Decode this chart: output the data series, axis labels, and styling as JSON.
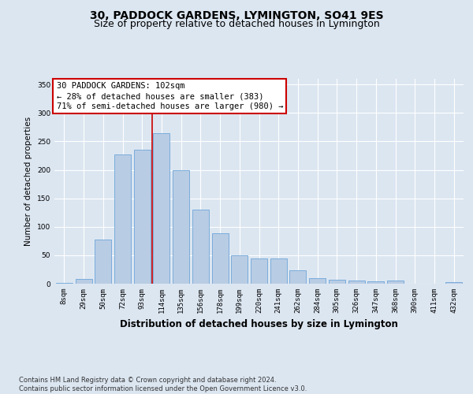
{
  "title": "30, PADDOCK GARDENS, LYMINGTON, SO41 9ES",
  "subtitle": "Size of property relative to detached houses in Lymington",
  "xlabel": "Distribution of detached houses by size in Lymington",
  "ylabel": "Number of detached properties",
  "categories": [
    "8sqm",
    "29sqm",
    "50sqm",
    "72sqm",
    "93sqm",
    "114sqm",
    "135sqm",
    "156sqm",
    "178sqm",
    "199sqm",
    "220sqm",
    "241sqm",
    "262sqm",
    "284sqm",
    "305sqm",
    "326sqm",
    "347sqm",
    "368sqm",
    "390sqm",
    "411sqm",
    "432sqm"
  ],
  "values": [
    2,
    8,
    77,
    227,
    235,
    265,
    200,
    130,
    88,
    50,
    45,
    44,
    24,
    10,
    7,
    6,
    4,
    6,
    0,
    0,
    3
  ],
  "bar_color": "#b8cce4",
  "bar_edge_color": "#5b9bd5",
  "background_color": "#dce6f1",
  "plot_bg_color": "#dce6f1",
  "grid_color": "#ffffff",
  "annotation_text": "30 PADDOCK GARDENS: 102sqm\n← 28% of detached houses are smaller (383)\n71% of semi-detached houses are larger (980) →",
  "vline_x_index": 4.5,
  "vline_color": "#cc0000",
  "ylim": [
    0,
    360
  ],
  "yticks": [
    0,
    50,
    100,
    150,
    200,
    250,
    300,
    350
  ],
  "footer": "Contains HM Land Registry data © Crown copyright and database right 2024.\nContains public sector information licensed under the Open Government Licence v3.0.",
  "title_fontsize": 10,
  "subtitle_fontsize": 9,
  "xlabel_fontsize": 8.5,
  "ylabel_fontsize": 7.5,
  "tick_fontsize": 6.5,
  "annotation_fontsize": 7.5
}
